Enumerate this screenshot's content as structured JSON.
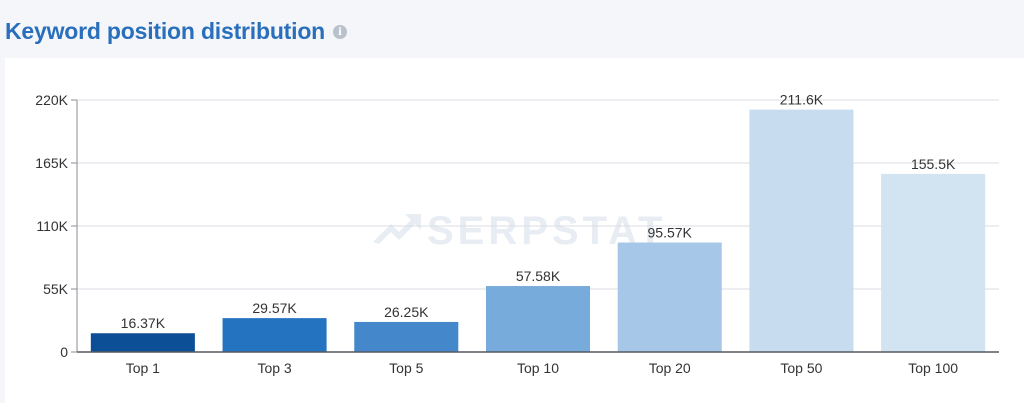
{
  "header": {
    "title": "Keyword position distribution",
    "info_icon": "info-icon"
  },
  "watermark": {
    "text": "SERPSTAT",
    "icon": "serpstat-logo-icon"
  },
  "chart_data": {
    "type": "bar",
    "title": "Keyword position distribution",
    "categories": [
      "Top 1",
      "Top 3",
      "Top 5",
      "Top 10",
      "Top 20",
      "Top 50",
      "Top 100"
    ],
    "values": [
      16370,
      29570,
      26250,
      57580,
      95570,
      211600,
      155500
    ],
    "data_labels": [
      "16.37K",
      "29.57K",
      "26.25K",
      "57.58K",
      "95.57K",
      "211.6K",
      "155.5K"
    ],
    "colors": [
      "#0d4f96",
      "#2373c0",
      "#4488cb",
      "#76abdb",
      "#a6c7e7",
      "#c8dcf0",
      "#d2e3f2"
    ],
    "yticks": [
      0,
      55000,
      110000,
      165000,
      220000
    ],
    "ytick_labels": [
      "0",
      "55K",
      "110K",
      "165K",
      "220K"
    ],
    "ylim": [
      0,
      220000
    ],
    "grid": true,
    "legend": "none",
    "xlabel": "",
    "ylabel": ""
  }
}
